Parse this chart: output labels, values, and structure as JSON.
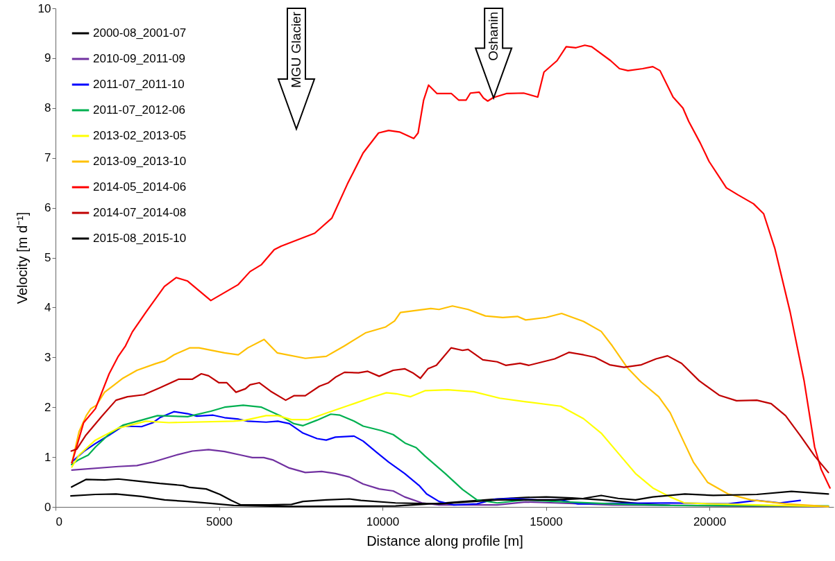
{
  "chart_data": {
    "type": "line",
    "xlabel": "Distance along profile [m]",
    "ylabel": "Velocity [m d⁻¹]",
    "xlim": [
      0,
      23800
    ],
    "ylim": [
      0,
      10
    ],
    "xticks": [
      0,
      5000,
      10000,
      15000,
      20000
    ],
    "yticks": [
      0,
      1,
      2,
      3,
      4,
      5,
      6,
      7,
      8,
      9,
      10
    ],
    "grid": false,
    "legend": "top left",
    "marker": "none",
    "line_style": "solid",
    "annotations": [
      "MGU Glacier",
      {
        "text": "Oshanin",
        "x": 13400,
        "y": 8.2
      }
    ],
    "series": [
      {
        "name": "2000-08_2001-07",
        "color": "#000000",
        "x": [
          470,
          1220,
          1850,
          2630,
          3340,
          4040,
          4750,
          5450,
          7140,
          10400,
          11730,
          13510,
          14380,
          15010,
          15800,
          16690,
          17920,
          18800,
          22000
        ],
        "values": [
          0.22,
          0.25,
          0.26,
          0.21,
          0.14,
          0.11,
          0.07,
          0.03,
          0.01,
          0.02,
          0.07,
          0.16,
          0.19,
          0.2,
          0.18,
          0.14,
          0.06,
          0.03,
          0.02
        ]
      },
      {
        "name": "2010-09_2011-09",
        "color": "#7030a0",
        "x": [
          500,
          1920,
          2490,
          2980,
          3690,
          4180,
          4680,
          5170,
          5670,
          6020,
          6370,
          6660,
          7150,
          7640,
          8140,
          8560,
          8990,
          9410,
          9900,
          10330,
          10680,
          11210,
          11730,
          13510,
          14380,
          15270,
          17030,
          23640
        ],
        "values": [
          0.74,
          0.81,
          0.83,
          0.9,
          1.04,
          1.12,
          1.15,
          1.11,
          1.04,
          0.99,
          0.99,
          0.94,
          0.78,
          0.69,
          0.71,
          0.67,
          0.6,
          0.46,
          0.36,
          0.32,
          0.2,
          0.08,
          0.04,
          0.04,
          0.1,
          0.08,
          0.04,
          0.01
        ]
      },
      {
        "name": "2011-07_2011-10",
        "color": "#0000ff",
        "x": [
          500,
          860,
          1220,
          1640,
          2060,
          2630,
          2980,
          3190,
          3620,
          4040,
          4320,
          4820,
          5170,
          5600,
          5880,
          6440,
          6800,
          7150,
          7570,
          8000,
          8280,
          8560,
          9130,
          9410,
          9830,
          10190,
          10680,
          11120,
          11350,
          11730,
          12180,
          12890,
          13420,
          13950,
          14740,
          15450,
          15980,
          17030,
          18800,
          20570,
          21450,
          22160,
          22780
        ],
        "values": [
          0.9,
          1.11,
          1.27,
          1.44,
          1.62,
          1.61,
          1.69,
          1.79,
          1.91,
          1.87,
          1.82,
          1.84,
          1.79,
          1.76,
          1.72,
          1.7,
          1.72,
          1.67,
          1.48,
          1.37,
          1.34,
          1.4,
          1.42,
          1.32,
          1.09,
          0.9,
          0.67,
          0.43,
          0.26,
          0.11,
          0.04,
          0.06,
          0.15,
          0.17,
          0.14,
          0.14,
          0.06,
          0.07,
          0.08,
          0.06,
          0.13,
          0.08,
          0.13
        ]
      },
      {
        "name": "2011-07_2012-06",
        "color": "#00b050",
        "x": [
          490,
          720,
          1000,
          1220,
          1640,
          2060,
          2630,
          3120,
          4040,
          4750,
          5170,
          5740,
          6300,
          6870,
          7290,
          7570,
          8000,
          8420,
          8700,
          9130,
          9410,
          9970,
          10330,
          10690,
          11030,
          11300,
          11920,
          12450,
          12890,
          13510,
          14380,
          15270,
          17030,
          18800,
          23640
        ],
        "values": [
          0.85,
          0.95,
          1.04,
          1.2,
          1.46,
          1.64,
          1.74,
          1.83,
          1.81,
          1.92,
          2,
          2.04,
          2,
          1.83,
          1.67,
          1.63,
          1.74,
          1.86,
          1.84,
          1.72,
          1.62,
          1.53,
          1.45,
          1.28,
          1.19,
          1.02,
          0.67,
          0.35,
          0.14,
          0.08,
          0.14,
          0.11,
          0.06,
          0.03,
          0.02
        ]
      },
      {
        "name": "2013-02_2013-05",
        "color": "#ffff00",
        "x": [
          500,
          720,
          1220,
          1920,
          2770,
          3470,
          5450,
          5810,
          6440,
          6800,
          7220,
          7720,
          8280,
          8990,
          9690,
          10120,
          10420,
          10860,
          11300,
          12000,
          12790,
          13590,
          14380,
          15450,
          16150,
          16690,
          17210,
          17740,
          18270,
          18800,
          19240,
          20120,
          21450,
          23640
        ],
        "values": [
          0.8,
          1.04,
          1.34,
          1.58,
          1.72,
          1.69,
          1.72,
          1.74,
          1.83,
          1.83,
          1.75,
          1.75,
          1.88,
          2.04,
          2.2,
          2.29,
          2.27,
          2.21,
          2.33,
          2.35,
          2.31,
          2.18,
          2.11,
          2.02,
          1.77,
          1.48,
          1.08,
          0.67,
          0.38,
          0.2,
          0.08,
          0.06,
          0.04,
          0.01
        ]
      },
      {
        "name": "2013-09_2013-10",
        "color": "#ffc000",
        "x": [
          500,
          720,
          940,
          1080,
          1250,
          1500,
          1780,
          2060,
          2490,
          3050,
          3340,
          3620,
          4100,
          4390,
          5170,
          5590,
          5880,
          6380,
          6780,
          7640,
          8280,
          8840,
          9480,
          10100,
          10370,
          10550,
          11480,
          11730,
          12140,
          12620,
          13150,
          13680,
          14130,
          14380,
          15010,
          15480,
          16150,
          16690,
          17030,
          17480,
          17920,
          18450,
          18800,
          19250,
          19510,
          19950,
          20570,
          21270,
          22330,
          23640
        ],
        "values": [
          0.88,
          1.51,
          1.83,
          1.97,
          2.04,
          2.3,
          2.44,
          2.58,
          2.74,
          2.87,
          2.93,
          3.05,
          3.19,
          3.19,
          3.09,
          3.05,
          3.19,
          3.36,
          3.09,
          2.98,
          3.02,
          3.23,
          3.49,
          3.61,
          3.73,
          3.9,
          3.98,
          3.96,
          4.03,
          3.96,
          3.83,
          3.8,
          3.82,
          3.75,
          3.8,
          3.88,
          3.72,
          3.52,
          3.23,
          2.8,
          2.5,
          2.21,
          1.89,
          1.26,
          0.9,
          0.49,
          0.26,
          0.14,
          0.06,
          0.01
        ]
      },
      {
        "name": "2014-05_2014-06",
        "color": "#ff0000",
        "x": [
          500,
          860,
          1220,
          1640,
          1920,
          2140,
          2350,
          2770,
          3330,
          3690,
          4040,
          4750,
          5590,
          5950,
          6300,
          6690,
          6900,
          7930,
          8450,
          8930,
          9410,
          9880,
          10190,
          10520,
          10960,
          11090,
          11260,
          11410,
          11670,
          12110,
          12330,
          12560,
          12690,
          12960,
          13090,
          13220,
          13390,
          13790,
          14320,
          14750,
          14940,
          15340,
          15620,
          15920,
          16190,
          16400,
          16980,
          17250,
          17510,
          17960,
          18270,
          18490,
          18890,
          19190,
          19370,
          19720,
          19990,
          20520,
          20870,
          21350,
          21660,
          22000,
          22470,
          22900,
          23220,
          23420,
          23690
        ],
        "values": [
          0.88,
          1.69,
          1.97,
          2.67,
          3.02,
          3.23,
          3.51,
          3.91,
          4.42,
          4.6,
          4.53,
          4.14,
          4.46,
          4.72,
          4.86,
          5.16,
          5.23,
          5.49,
          5.79,
          6.48,
          7.1,
          7.5,
          7.55,
          7.52,
          7.39,
          7.5,
          8.16,
          8.46,
          8.29,
          8.29,
          8.16,
          8.16,
          8.3,
          8.32,
          8.2,
          8.14,
          8.21,
          8.29,
          8.3,
          8.22,
          8.72,
          8.95,
          9.23,
          9.21,
          9.26,
          9.23,
          8.95,
          8.79,
          8.75,
          8.79,
          8.83,
          8.75,
          8.22,
          8,
          7.73,
          7.3,
          6.93,
          6.4,
          6.26,
          6.08,
          5.88,
          5.19,
          3.91,
          2.52,
          1.2,
          0.75,
          0.38
        ]
      },
      {
        "name": "2014-07_2014-08",
        "color": "#c00000",
        "x": [
          480,
          650,
          930,
          1430,
          1850,
          2200,
          2700,
          3190,
          3760,
          4180,
          4460,
          4680,
          5000,
          5240,
          5520,
          5810,
          5950,
          6230,
          6580,
          7040,
          7290,
          7640,
          8070,
          8350,
          8560,
          8840,
          9270,
          9550,
          9900,
          10330,
          10680,
          10950,
          11160,
          11390,
          11650,
          12100,
          12450,
          12620,
          13070,
          13510,
          13770,
          14210,
          14480,
          15270,
          15710,
          16150,
          16500,
          16950,
          17390,
          17920,
          18370,
          18720,
          19150,
          19690,
          20300,
          20830,
          21450,
          21890,
          22330,
          22780,
          23220,
          23640
        ],
        "values": [
          1.12,
          1.16,
          1.44,
          1.83,
          2.14,
          2.21,
          2.25,
          2.39,
          2.56,
          2.56,
          2.67,
          2.63,
          2.49,
          2.49,
          2.3,
          2.37,
          2.45,
          2.49,
          2.32,
          2.14,
          2.23,
          2.23,
          2.42,
          2.49,
          2.6,
          2.7,
          2.69,
          2.72,
          2.62,
          2.74,
          2.77,
          2.68,
          2.58,
          2.77,
          2.84,
          3.19,
          3.14,
          3.16,
          2.95,
          2.91,
          2.84,
          2.88,
          2.84,
          2.97,
          3.1,
          3.05,
          3,
          2.85,
          2.8,
          2.85,
          2.97,
          3.03,
          2.88,
          2.53,
          2.24,
          2.13,
          2.14,
          2.07,
          1.83,
          1.43,
          1.02,
          0.69
        ]
      },
      {
        "name": "2015-08_2015-10",
        "color": "#000000",
        "x": [
          490,
          930,
          1500,
          1920,
          2490,
          3190,
          3900,
          4110,
          4610,
          5030,
          5380,
          5670,
          6510,
          7220,
          7570,
          8280,
          8990,
          9340,
          10400,
          11730,
          13510,
          15270,
          16150,
          16690,
          17210,
          17740,
          18270,
          19250,
          20120,
          21450,
          22510,
          23640
        ],
        "values": [
          0.4,
          0.55,
          0.54,
          0.56,
          0.52,
          0.47,
          0.43,
          0.39,
          0.36,
          0.25,
          0.13,
          0.04,
          0.04,
          0.05,
          0.11,
          0.14,
          0.16,
          0.13,
          0.08,
          0.06,
          0.14,
          0.14,
          0.17,
          0.23,
          0.17,
          0.14,
          0.2,
          0.26,
          0.23,
          0.25,
          0.31,
          0.26
        ]
      }
    ]
  }
}
